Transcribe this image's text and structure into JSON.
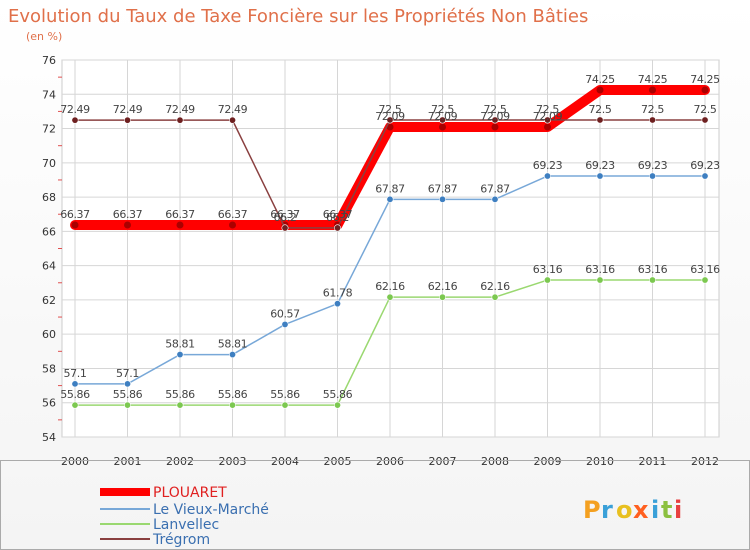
{
  "chart_data": {
    "type": "line",
    "title": "Evolution du Taux de Taxe Foncière sur les Propriétés Non Bâties",
    "subtitle": "(en %)",
    "xlabel": "",
    "ylabel": "",
    "categories": [
      "2000",
      "2001",
      "2002",
      "2003",
      "2004",
      "2005",
      "2006",
      "2007",
      "2008",
      "2009",
      "2010",
      "2011",
      "2012"
    ],
    "ylim": [
      54,
      76
    ],
    "yticks": [
      54,
      56,
      58,
      60,
      62,
      64,
      66,
      68,
      70,
      72,
      74,
      76
    ],
    "series": [
      {
        "name": "PLOUARET",
        "color": "#ff0000",
        "values": [
          66.37,
          66.37,
          66.37,
          66.37,
          66.37,
          66.37,
          72.09,
          72.09,
          72.09,
          72.09,
          74.25,
          74.25,
          74.25
        ],
        "labels": [
          "66.37",
          "66.37",
          "66.37",
          "66.37",
          "66.37",
          "66.37",
          "72.09",
          "72.09",
          "72.09",
          "72.09",
          "74.25",
          "74.25",
          "74.25"
        ],
        "emphasis": true
      },
      {
        "name": "Le Vieux-Marché",
        "color": "#78a8d8",
        "marker": "#3e7fc1",
        "values": [
          57.1,
          57.1,
          58.81,
          58.81,
          60.57,
          61.78,
          67.87,
          67.87,
          67.87,
          69.23,
          69.23,
          69.23,
          69.23
        ],
        "labels": [
          "57.1",
          "57.1",
          "58.81",
          "58.81",
          "60.57",
          "61.78",
          "67.87",
          "67.87",
          "67.87",
          "69.23",
          "69.23",
          "69.23",
          "69.23"
        ]
      },
      {
        "name": "Lanvellec",
        "color": "#9ad870",
        "marker": "#7cc850",
        "values": [
          55.86,
          55.86,
          55.86,
          55.86,
          55.86,
          55.86,
          62.16,
          62.16,
          62.16,
          63.16,
          63.16,
          63.16,
          63.16
        ],
        "labels": [
          "55.86",
          "55.86",
          "55.86",
          "55.86",
          "55.86",
          "55.86",
          "62.16",
          "62.16",
          "62.16",
          "63.16",
          "63.16",
          "63.16",
          "63.16"
        ]
      },
      {
        "name": "Trégrom",
        "color": "#8a4040",
        "marker": "#6e2020",
        "values": [
          72.49,
          72.49,
          72.49,
          72.49,
          66.2,
          66.2,
          72.5,
          72.5,
          72.5,
          72.5,
          72.5,
          72.5,
          72.5
        ],
        "labels": [
          "72.49",
          "72.49",
          "72.49",
          "72.49",
          "66.2",
          "66.2",
          "72.5",
          "72.5",
          "72.5",
          "72.5",
          "72.5",
          "72.5",
          "72.5"
        ]
      }
    ],
    "legend_position": "bottom-left"
  },
  "logo": {
    "letters": [
      "P",
      "r",
      "o",
      "x",
      "i",
      "t",
      "i"
    ],
    "colors": [
      "#f4a020",
      "#3aa0d8",
      "#e8c020",
      "#ff6020",
      "#3aa0d8",
      "#8cc040",
      "#e84040"
    ]
  }
}
